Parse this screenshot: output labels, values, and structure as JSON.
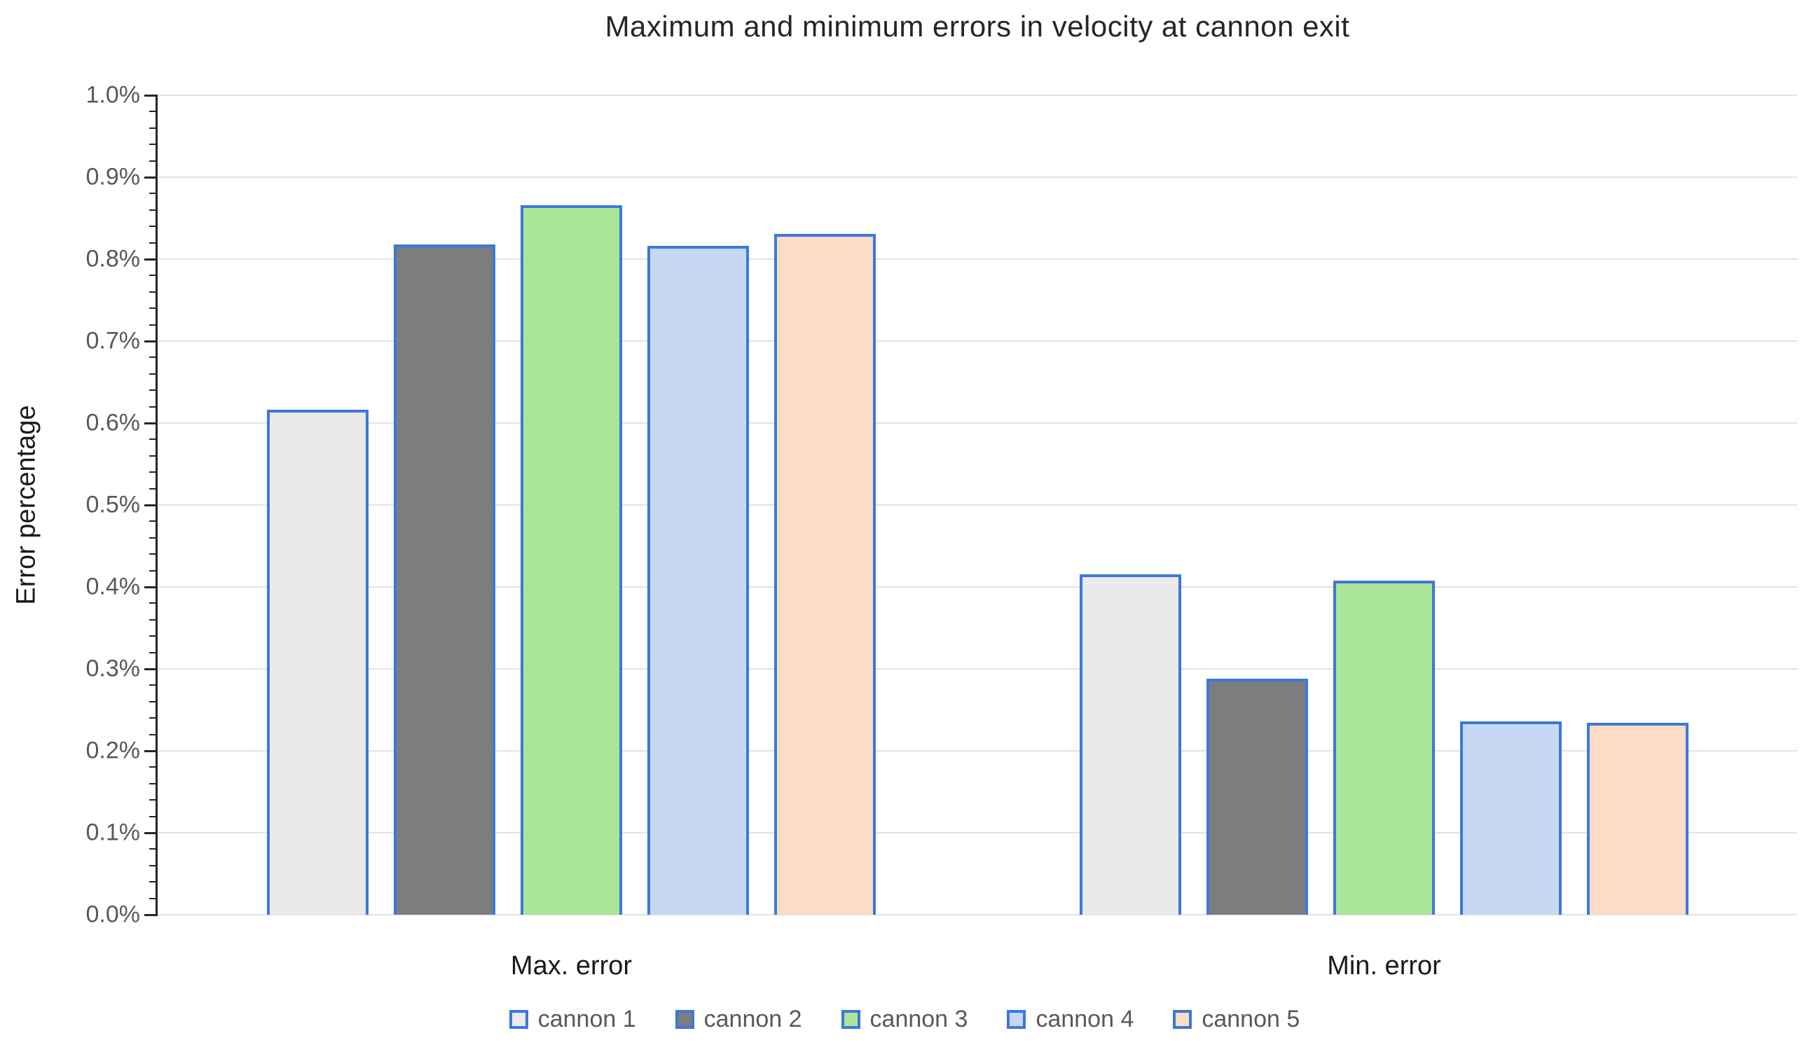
{
  "chart_data": {
    "type": "bar",
    "title": "Maximum and minimum errors in velocity at cannon exit",
    "ylabel": "Error percentage",
    "xlabel": "",
    "categories": [
      "Max. error",
      "Min. error"
    ],
    "series": [
      {
        "name": "cannon 1",
        "values": [
          0.616,
          0.415
        ],
        "fill": "#eaeaea"
      },
      {
        "name": "cannon 2",
        "values": [
          0.818,
          0.288
        ],
        "fill": "#7d7d7d"
      },
      {
        "name": "cannon 3",
        "values": [
          0.866,
          0.408
        ],
        "fill": "#abe698"
      },
      {
        "name": "cannon 4",
        "values": [
          0.816,
          0.236
        ],
        "fill": "#c7d8f5"
      },
      {
        "name": "cannon 5",
        "values": [
          0.831,
          0.234
        ],
        "fill": "#fcdcc6"
      }
    ],
    "value_unit": "%",
    "ylim": [
      0.0,
      1.0
    ],
    "ytick_step": 0.1,
    "yminor_tick_step": 0.02,
    "ytick_labels": [
      "0.0%",
      "0.1%",
      "0.2%",
      "0.3%",
      "0.4%",
      "0.5%",
      "0.6%",
      "0.7%",
      "0.8%",
      "0.9%",
      "1.0%"
    ],
    "grid": true,
    "legend_position": "bottom"
  },
  "colors": {
    "bar_border": "#3c78dc",
    "gridline": "#e2e2e2",
    "axis": "#262626",
    "tick_label": "#595959",
    "legend_text": "#595959",
    "title_text": "#262626"
  }
}
